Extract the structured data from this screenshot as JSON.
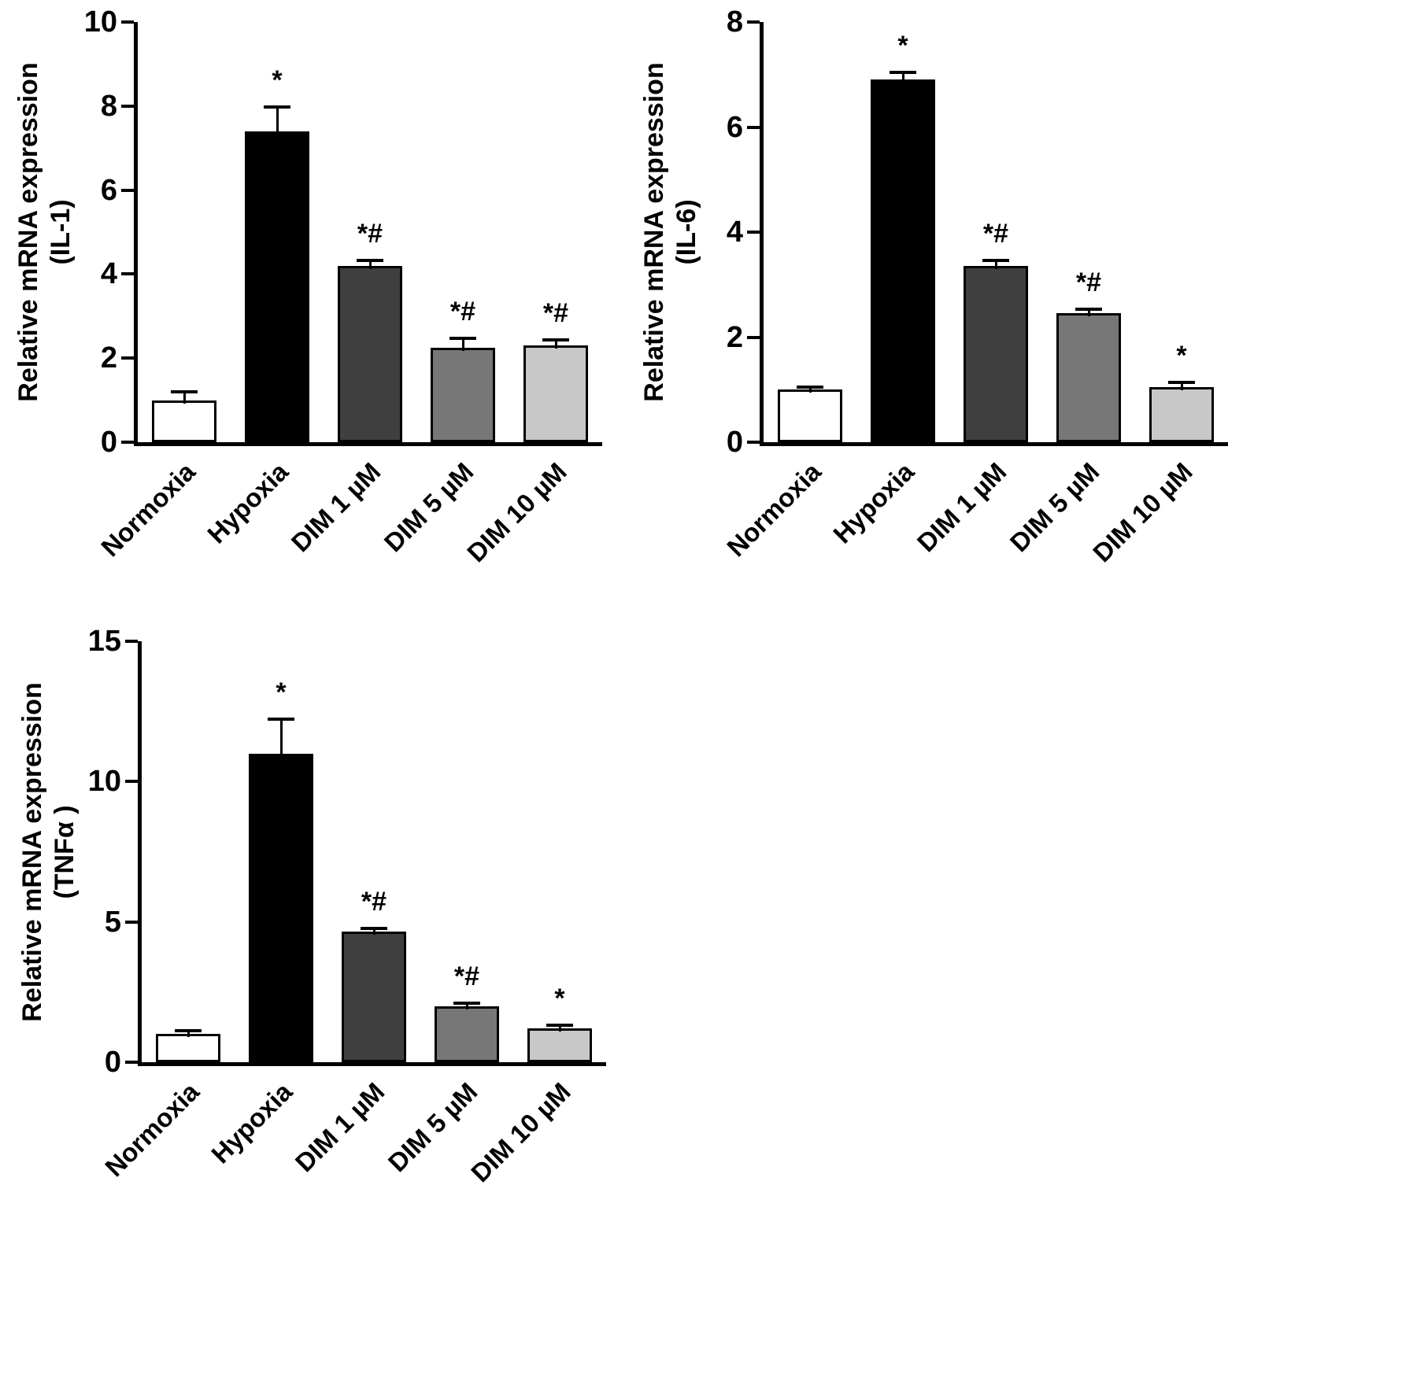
{
  "figure": {
    "background": "#ffffff",
    "axis_color": "#000000"
  },
  "chart_data": [
    {
      "type": "bar",
      "panel": "top-left",
      "ylabel_line1": "Relative mRNA expression",
      "ylabel_line2": "(IL-1)",
      "categories": [
        "Normoxia",
        "Hypoxia",
        "DIM 1 µM",
        "DIM 5 µM",
        "DIM 10 µM"
      ],
      "values": [
        1.0,
        7.4,
        4.2,
        2.25,
        2.3
      ],
      "errors": [
        0.18,
        0.55,
        0.1,
        0.2,
        0.12
      ],
      "annotations": [
        "",
        "*",
        "*#",
        "*#",
        "*#"
      ],
      "bar_colors": [
        "#ffffff",
        "#000000",
        "#3f3f3f",
        "#777777",
        "#c8c8c8"
      ],
      "ylim": [
        0,
        10
      ],
      "yticks": [
        0,
        2,
        4,
        6,
        8,
        10
      ],
      "legend": "none",
      "grid": false
    },
    {
      "type": "bar",
      "panel": "top-right",
      "ylabel_line1": "Relative mRNA expression",
      "ylabel_line2": "(IL-6)",
      "categories": [
        "Normoxia",
        "Hypoxia",
        "DIM 1 µM",
        "DIM 5 µM",
        "DIM 10 µM"
      ],
      "values": [
        1.0,
        6.9,
        3.35,
        2.45,
        1.05
      ],
      "errors": [
        0.04,
        0.12,
        0.1,
        0.07,
        0.07
      ],
      "annotations": [
        "",
        "*",
        "*#",
        "*#",
        "*"
      ],
      "bar_colors": [
        "#ffffff",
        "#000000",
        "#3f3f3f",
        "#777777",
        "#c8c8c8"
      ],
      "ylim": [
        0,
        8
      ],
      "yticks": [
        0,
        2,
        4,
        6,
        8
      ],
      "legend": "none",
      "grid": false
    },
    {
      "type": "bar",
      "panel": "bottom-left",
      "ylabel_line1": "Relative mRNA expression",
      "ylabel_line2": "(TNFα )",
      "categories": [
        "Normoxia",
        "Hypoxia",
        "DIM 1 µM",
        "DIM 5 µM",
        "DIM 10 µM"
      ],
      "values": [
        1.0,
        11.0,
        4.65,
        2.0,
        1.2
      ],
      "errors": [
        0.1,
        1.2,
        0.08,
        0.08,
        0.1
      ],
      "annotations": [
        "",
        "*",
        "*#",
        "*#",
        "*"
      ],
      "bar_colors": [
        "#ffffff",
        "#000000",
        "#3f3f3f",
        "#777777",
        "#c8c8c8"
      ],
      "ylim": [
        0,
        15
      ],
      "yticks": [
        0,
        5,
        10,
        15
      ],
      "legend": "none",
      "grid": false
    }
  ]
}
